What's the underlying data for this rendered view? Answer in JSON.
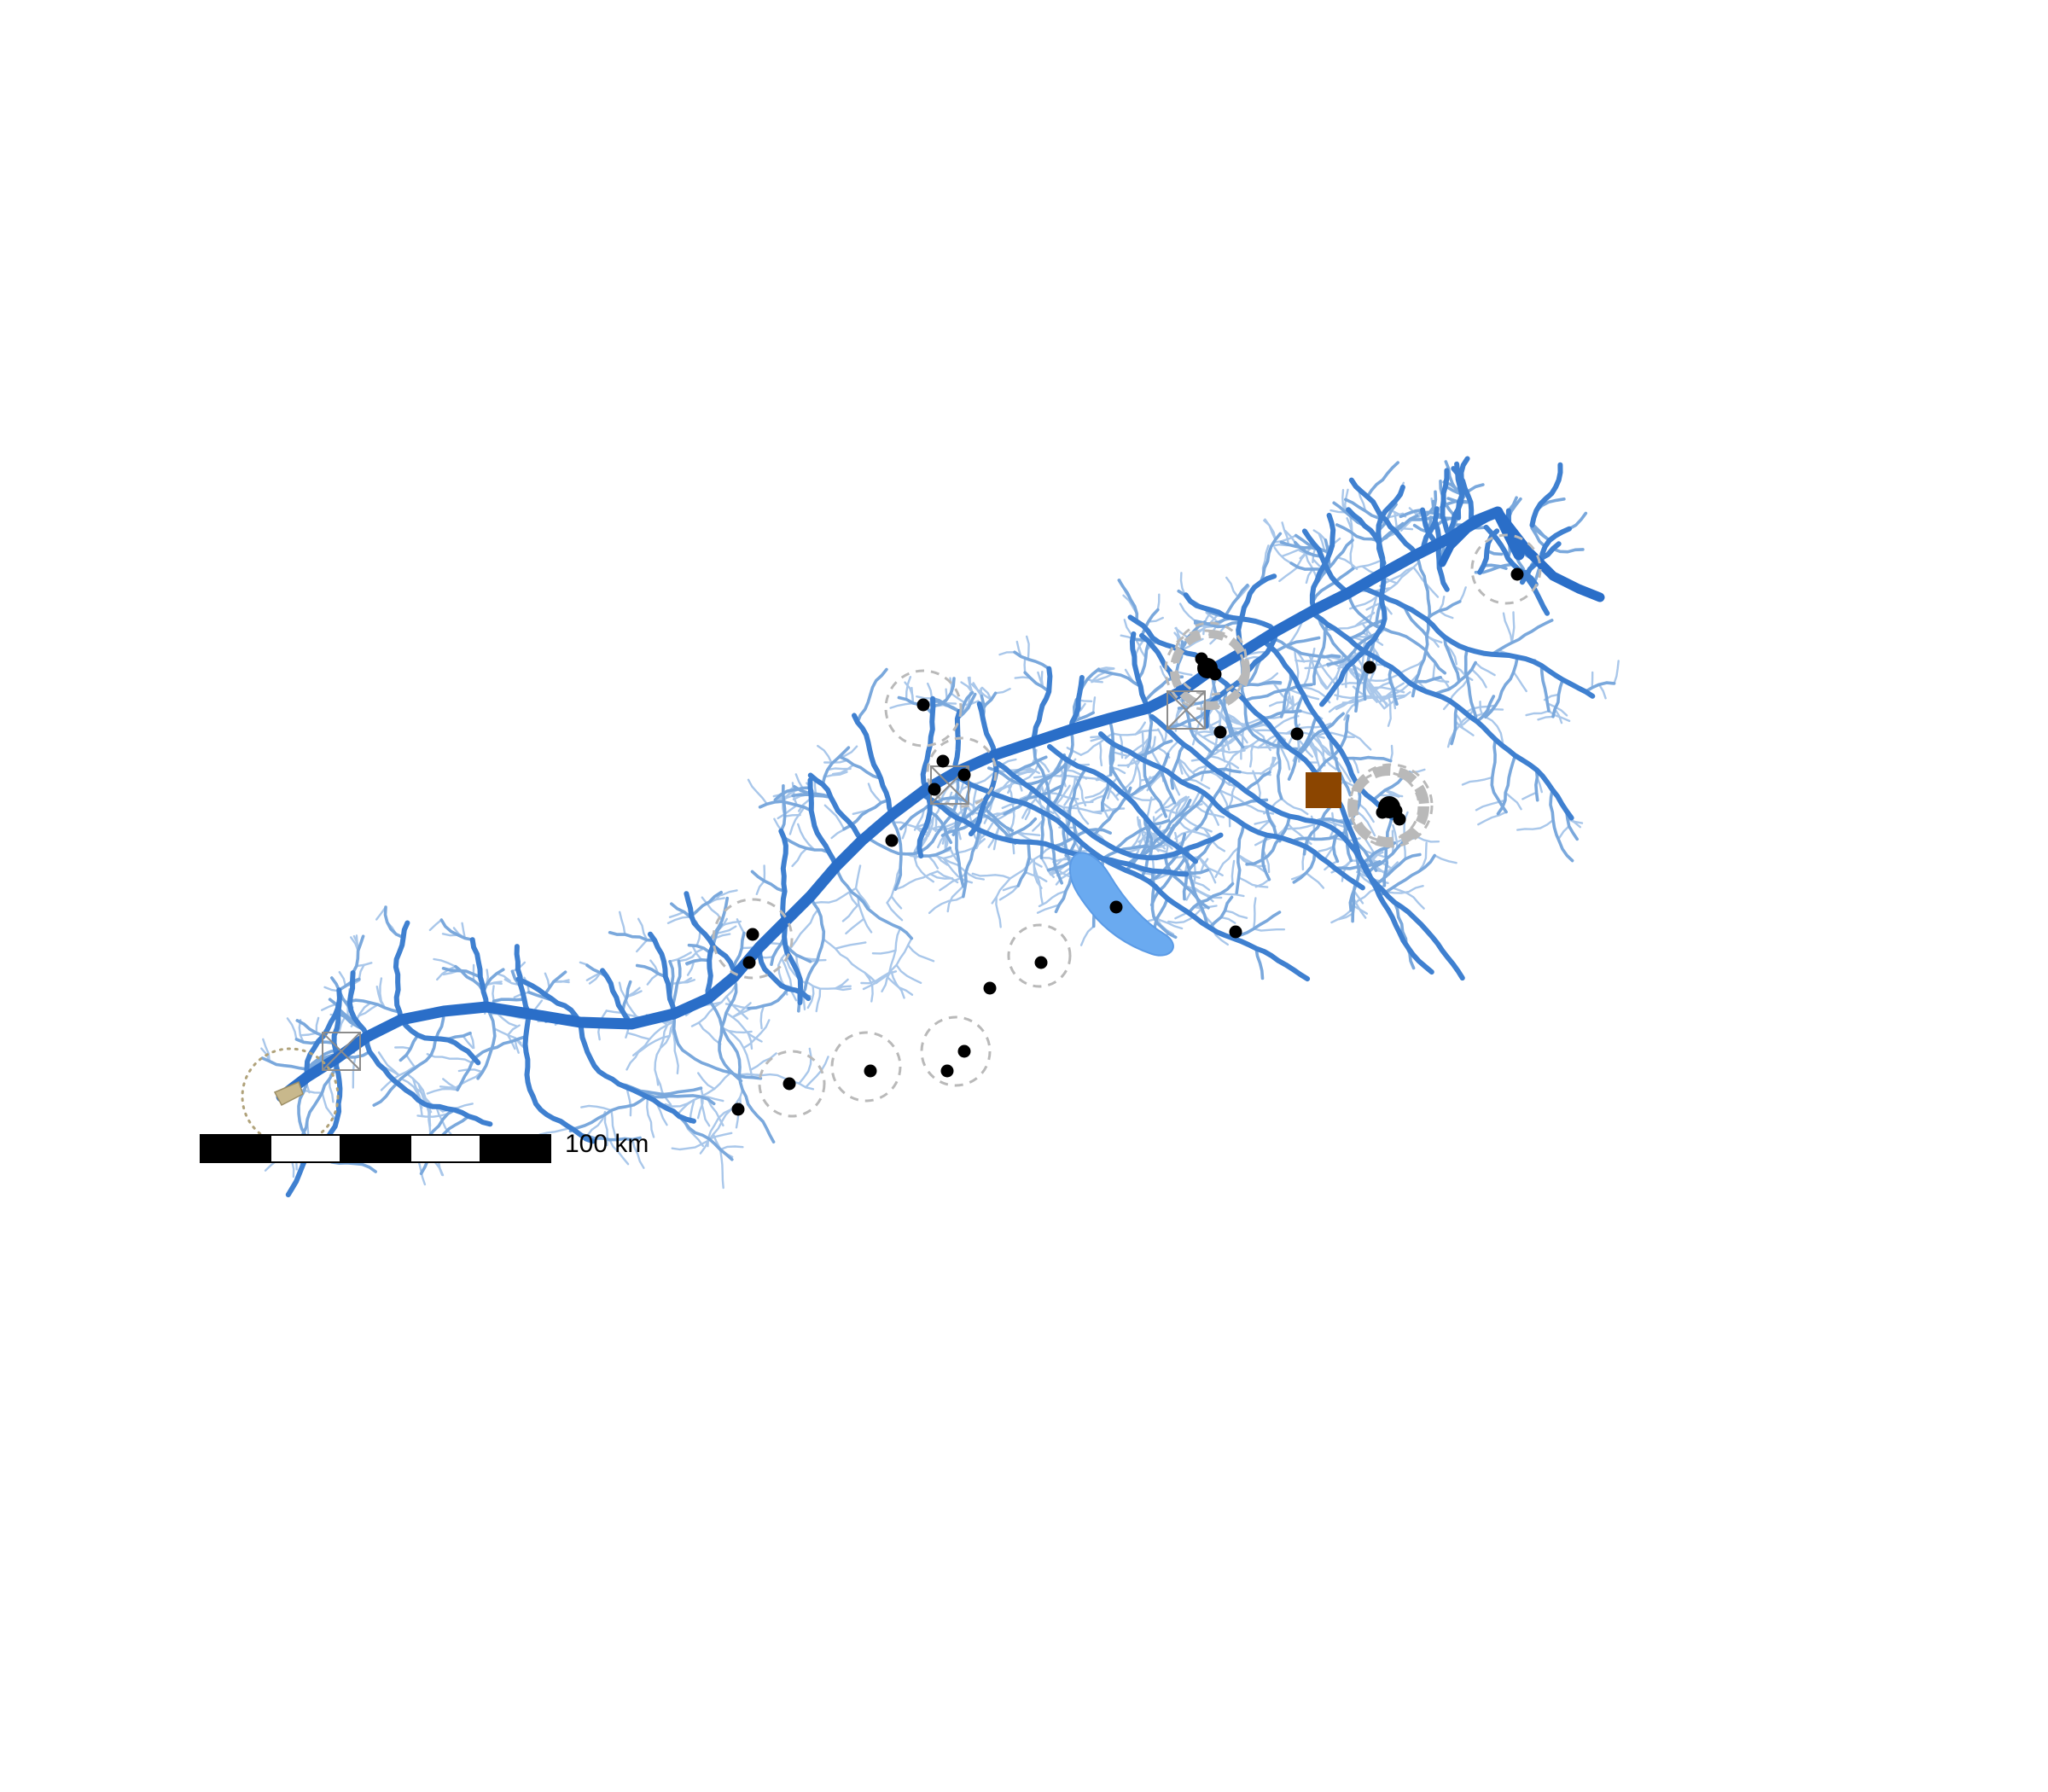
{
  "map": {
    "scale_bar": {
      "label": "100 km",
      "segments": 5
    },
    "colors": {
      "main_river": "#2a6ec8",
      "tributary": "#3f80d0",
      "minor_stream": "#7aa8dc",
      "faint_stream": "#a9c7ea",
      "lake": "#6aaaf0",
      "town_point": "#000000",
      "buffer_ring": "#b9b9b9",
      "facility_square": "#8b4500",
      "outlet_fill": "#c8b88c",
      "outlet_ring": "#b0a27a",
      "station_box": "#8c8c8c"
    },
    "icons": {
      "town": "town-point-icon",
      "station": "gauging-station-icon",
      "facility": "facility-square-icon",
      "outlet": "estuary-outlet-icon"
    }
  }
}
